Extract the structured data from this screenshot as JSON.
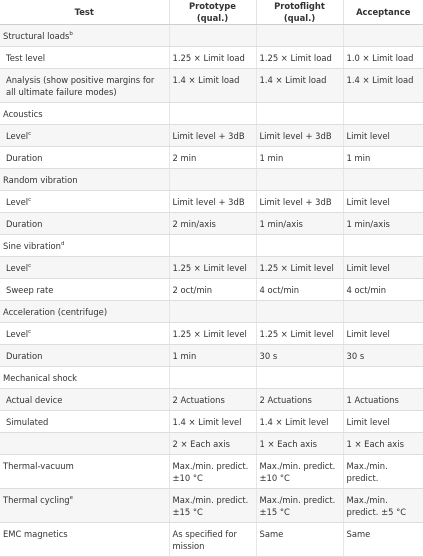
{
  "columns": [
    "Test",
    "Prototype (qual.)",
    "Protoflight (qual.)",
    "Acceptance"
  ],
  "rows": [
    {
      "label": "Structural loads",
      "sup": "b",
      "cells": [
        "",
        "",
        ""
      ],
      "section": true
    },
    {
      "label": "Test level",
      "cells": [
        "1.25 × Limit load",
        "1.25 × Limit load",
        "1.0 × Limit load"
      ]
    },
    {
      "label": "Analysis (show positive margins for all ultimate failure modes)",
      "cells": [
        "1.4 × Limit load",
        "1.4 × Limit load",
        "1.4 × Limit load"
      ]
    },
    {
      "label": "Acoustics",
      "cells": [
        "",
        "",
        ""
      ],
      "section": true
    },
    {
      "label": "Level",
      "sup": "c",
      "cells": [
        "Limit level + 3dB",
        "Limit level + 3dB",
        "Limit level"
      ]
    },
    {
      "label": "Duration",
      "cells": [
        "2 min",
        "1 min",
        "1 min"
      ]
    },
    {
      "label": "Random vibration",
      "cells": [
        "",
        "",
        ""
      ],
      "section": true
    },
    {
      "label": "Level",
      "sup": "c",
      "cells": [
        "Limit level + 3dB",
        "Limit level + 3dB",
        "Limit level"
      ]
    },
    {
      "label": "Duration",
      "cells": [
        "2 min/axis",
        "1 min/axis",
        "1 min/axis"
      ]
    },
    {
      "label": "Sine vibration",
      "sup": "d",
      "cells": [
        "",
        "",
        ""
      ],
      "section": true
    },
    {
      "label": "Level",
      "sup": "c",
      "cells": [
        "1.25 × Limit level",
        "1.25 × Limit level",
        "Limit level"
      ]
    },
    {
      "label": "Sweep rate",
      "cells": [
        "2 oct/min",
        "4 oct/min",
        "4 oct/min"
      ]
    },
    {
      "label": "Acceleration (centrifuge)",
      "cells": [
        "",
        "",
        ""
      ],
      "section": true
    },
    {
      "label": "Level",
      "sup": "c",
      "cells": [
        "1.25 × Limit level",
        "1.25 × Limit level",
        "Limit level"
      ]
    },
    {
      "label": "Duration",
      "cells": [
        "1 min",
        "30 s",
        "30 s"
      ]
    },
    {
      "label": "Mechanical shock",
      "cells": [
        "",
        "",
        ""
      ],
      "section": true
    },
    {
      "label": "Actual device",
      "cells": [
        "2 Actuations",
        "2 Actuations",
        "1 Actuations"
      ]
    },
    {
      "label": "Simulated",
      "cells": [
        "1.4 × Limit level",
        "1.4 × Limit level",
        "Limit level"
      ]
    },
    {
      "label": "",
      "cells": [
        "2 × Each axis",
        "1 × Each axis",
        "1 × Each axis"
      ]
    },
    {
      "label": "Thermal-vacuum",
      "cells": [
        "Max./min. predict. ±10 °C",
        "Max./min. predict. ±10 °C",
        "Max./min. predict."
      ],
      "section": true
    },
    {
      "label": "Thermal cycling",
      "sup": "e",
      "cells": [
        "Max./min. predict. ±15 °C",
        "Max./min. predict. ±15 °C",
        "Max./min. predict. ±5 °C"
      ],
      "section": true
    },
    {
      "label": "EMC magnetics",
      "cells": [
        "As specified for mission",
        "Same",
        "Same"
      ],
      "section": true
    }
  ]
}
